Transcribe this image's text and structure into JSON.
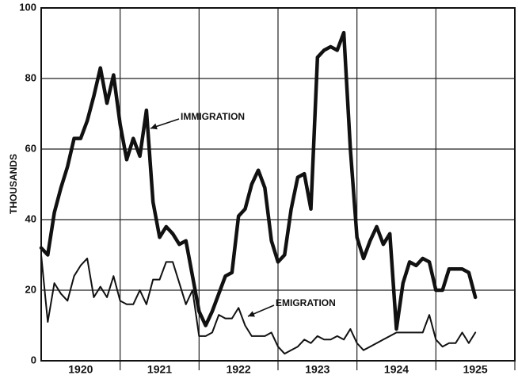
{
  "chart_data": {
    "type": "line",
    "y_label": "THOUSANDS",
    "categories": [
      null,
      null,
      null,
      null,
      null,
      null,
      "1920",
      null,
      null,
      null,
      null,
      null,
      null,
      null,
      null,
      null,
      null,
      null,
      "1921",
      null,
      null,
      null,
      null,
      null,
      null,
      null,
      null,
      null,
      null,
      null,
      "1922",
      null,
      null,
      null,
      null,
      null,
      null,
      null,
      null,
      null,
      null,
      null,
      "1923",
      null,
      null,
      null,
      null,
      null,
      null,
      null,
      null,
      null,
      null,
      null,
      "1924",
      null,
      null,
      null,
      null,
      null,
      null,
      null,
      null,
      null,
      null,
      null,
      "1925"
    ],
    "series": [
      {
        "name": "IMMIGRATION",
        "color": "#111111",
        "values": [
          32,
          30,
          42,
          49,
          55,
          63,
          63,
          68,
          75,
          83,
          73,
          81,
          67,
          57,
          63,
          58,
          71,
          45,
          35,
          38,
          36,
          33,
          34,
          24,
          14,
          10,
          14,
          19,
          24,
          25,
          41,
          43,
          50,
          54,
          49,
          34,
          28,
          30,
          43,
          52,
          53,
          43,
          86,
          88,
          89,
          88,
          93,
          60,
          35,
          29,
          34,
          38,
          33,
          36,
          9,
          22,
          28,
          27,
          29,
          28,
          20,
          20,
          26,
          26,
          26,
          25,
          18
        ]
      },
      {
        "name": "EMIGRATION",
        "color": "#111111",
        "values": [
          30,
          11,
          22,
          19,
          17,
          24,
          27,
          29,
          18,
          21,
          18,
          24,
          17,
          16,
          16,
          20,
          16,
          23,
          23,
          28,
          28,
          22,
          16,
          20,
          7,
          7,
          8,
          13,
          12,
          12,
          15,
          10,
          7,
          7,
          7,
          8,
          4,
          2,
          3,
          4,
          6,
          5,
          7,
          6,
          6,
          7,
          6,
          9,
          5,
          3,
          4,
          5,
          6,
          7,
          8,
          8,
          8,
          8,
          8,
          13,
          6,
          4,
          5,
          5,
          8,
          5,
          8
        ]
      }
    ],
    "ylim": [
      0,
      100
    ],
    "yticks": [
      0,
      20,
      40,
      60,
      80,
      100
    ],
    "grid": true
  }
}
